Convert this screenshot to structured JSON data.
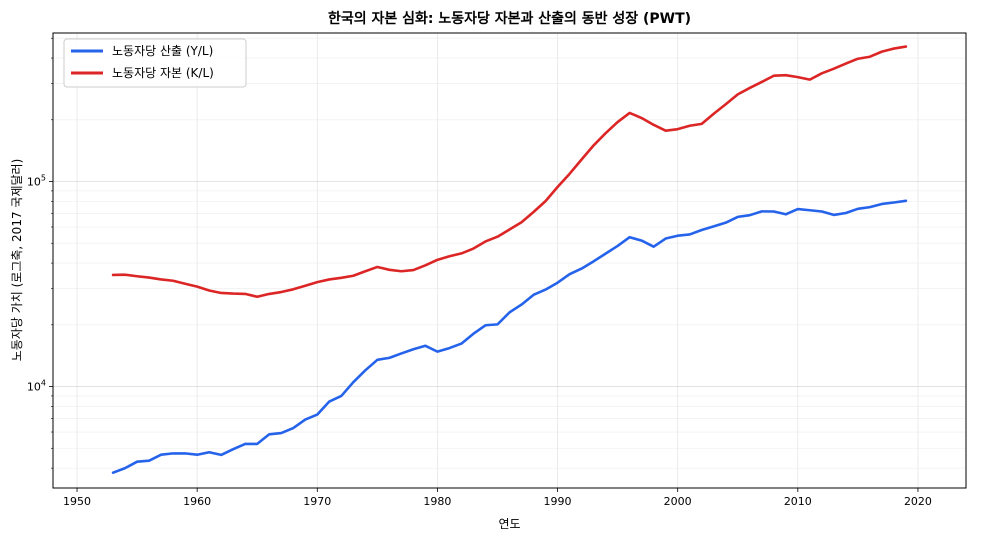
{
  "chart_data": {
    "type": "line",
    "title": "한국의 자본 심화: 노동자당 자본과 산출의 동반 성장 (PWT)",
    "xlabel": "연도",
    "ylabel": "노동자당 가치 (로그축, 2017 국제달러)",
    "xlim": [
      1948,
      2024
    ],
    "ylim": [
      3200,
      530000
    ],
    "yscale": "log",
    "grid": true,
    "legend_position": "top-left",
    "x_ticks": [
      1950,
      1960,
      1970,
      1980,
      1990,
      2000,
      2010,
      2020
    ],
    "y_ticks": [
      {
        "value": 10000,
        "base": "10",
        "exp": "4"
      },
      {
        "value": 100000,
        "base": "10",
        "exp": "5"
      }
    ],
    "x": [
      1953,
      1954,
      1955,
      1956,
      1957,
      1958,
      1959,
      1960,
      1961,
      1962,
      1963,
      1964,
      1965,
      1966,
      1967,
      1968,
      1969,
      1970,
      1971,
      1972,
      1973,
      1974,
      1975,
      1976,
      1977,
      1978,
      1979,
      1980,
      1981,
      1982,
      1983,
      1984,
      1985,
      1986,
      1987,
      1988,
      1989,
      1990,
      1991,
      1992,
      1993,
      1994,
      1995,
      1996,
      1997,
      1998,
      1999,
      2000,
      2001,
      2002,
      2003,
      2004,
      2005,
      2006,
      2007,
      2008,
      2009,
      2010,
      2011,
      2012,
      2013,
      2014,
      2015,
      2016,
      2017,
      2018,
      2019
    ],
    "series": [
      {
        "name": "노동자당 산출 (Y/L)",
        "color": "#2563eb",
        "values": [
          3800,
          4000,
          4300,
          4350,
          4650,
          4720,
          4720,
          4650,
          4780,
          4640,
          4950,
          5250,
          5250,
          5850,
          5930,
          6270,
          6900,
          7300,
          8450,
          9000,
          10500,
          12000,
          13500,
          13800,
          14500,
          15200,
          15800,
          14800,
          15400,
          16200,
          18100,
          19900,
          20100,
          23000,
          25100,
          28000,
          29700,
          32100,
          35300,
          37600,
          40800,
          44500,
          48500,
          53500,
          51500,
          48100,
          52700,
          54400,
          55200,
          58000,
          60400,
          63000,
          67200,
          68500,
          71500,
          71400,
          69200,
          73400,
          72400,
          71400,
          68700,
          70200,
          73600,
          75000,
          77700,
          79000,
          80500
        ]
      },
      {
        "name": "노동자당 자본 (K/L)",
        "color": "#dc2626",
        "values": [
          35000,
          35100,
          34500,
          34000,
          33300,
          32800,
          31700,
          30700,
          29400,
          28600,
          28400,
          28300,
          27400,
          28300,
          28900,
          29800,
          31000,
          32300,
          33300,
          33900,
          34700,
          36500,
          38300,
          37100,
          36500,
          37000,
          39000,
          41500,
          43200,
          44600,
          47100,
          51000,
          53800,
          58300,
          63300,
          71000,
          80200,
          94000,
          109000,
          128000,
          150000,
          172000,
          195000,
          216000,
          204000,
          189000,
          177000,
          180000,
          187000,
          191000,
          214000,
          238000,
          266000,
          286000,
          306000,
          328000,
          330000,
          323000,
          314000,
          337000,
          355000,
          376000,
          397000,
          406000,
          430000,
          445000,
          455000
        ]
      }
    ]
  }
}
